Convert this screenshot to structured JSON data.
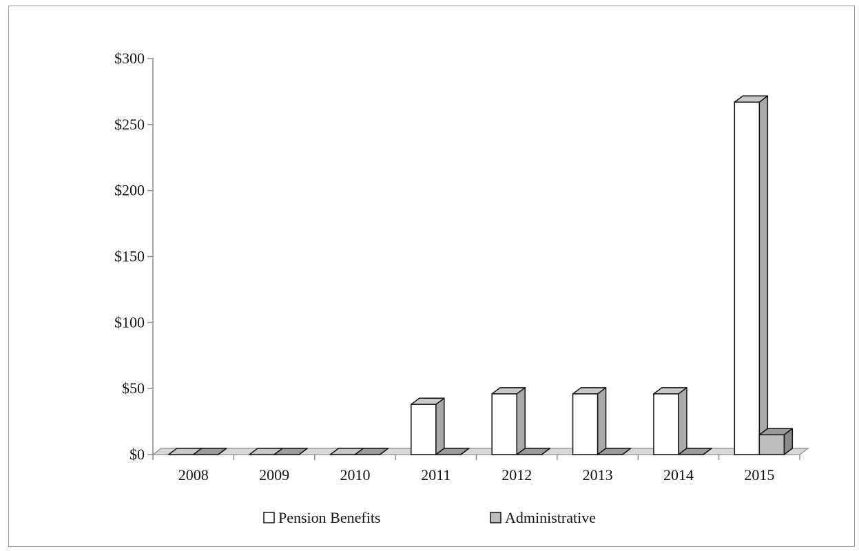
{
  "chart_data": {
    "type": "bar",
    "categories": [
      "2008",
      "2009",
      "2010",
      "2011",
      "2012",
      "2013",
      "2014",
      "2015"
    ],
    "series": [
      {
        "name": "Pension Benefits",
        "values": [
          0,
          0,
          0,
          38,
          46,
          46,
          46,
          267
        ],
        "color": "#ffffff",
        "side_color": "#aaaaaa",
        "top_color": "#c8c8c8"
      },
      {
        "name": "Administrative",
        "values": [
          0,
          0,
          0,
          0,
          0,
          0,
          0,
          15
        ],
        "color": "#bdbdbd",
        "side_color": "#8a8a8a",
        "top_color": "#9a9a9a"
      }
    ],
    "y_tick_labels": [
      "$0",
      "$50",
      "$100",
      "$150",
      "$200",
      "$250",
      "$300"
    ],
    "y_ticks": [
      0,
      50,
      100,
      150,
      200,
      250,
      300
    ],
    "ylim": [
      0,
      300
    ],
    "grid": false,
    "legend_position": "bottom",
    "style": "3d-column"
  }
}
